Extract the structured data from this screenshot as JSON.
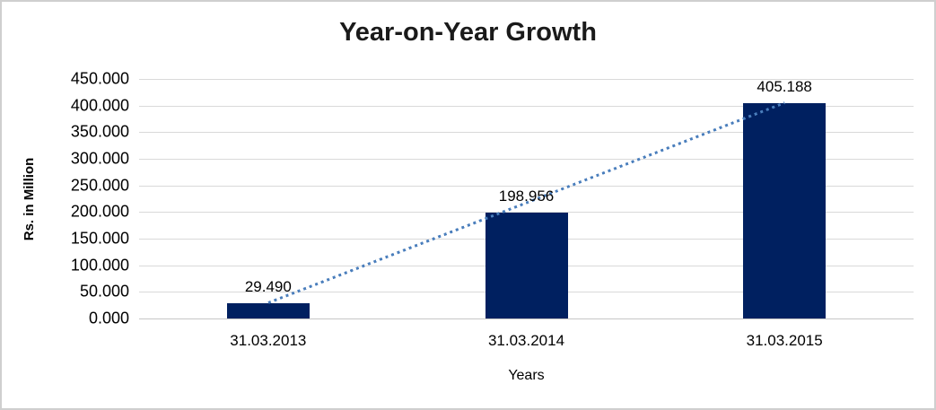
{
  "chart_data": {
    "type": "bar",
    "title": "Year-on-Year Growth",
    "xlabel": "Years",
    "ylabel": "Rs. in Million",
    "categories": [
      "31.03.2013",
      "31.03.2014",
      "31.03.2015"
    ],
    "values": [
      29.49,
      198.956,
      405.188
    ],
    "data_labels": [
      "29.490",
      "198.956",
      "405.188"
    ],
    "ylim": [
      0,
      450
    ],
    "ytick_step": 50,
    "ytick_labels": [
      "450.000",
      "400.000",
      "350.000",
      "300.000",
      "250.000",
      "200.000",
      "150.000",
      "100.000",
      "50.000",
      "0.000"
    ],
    "grid": true,
    "legend": false,
    "bar_color": "#002060",
    "gridline_color": "#d9d9d9",
    "trendline": {
      "style": "dotted",
      "color": "#4a7ebc",
      "from_index": 0,
      "to_index": 2
    }
  }
}
